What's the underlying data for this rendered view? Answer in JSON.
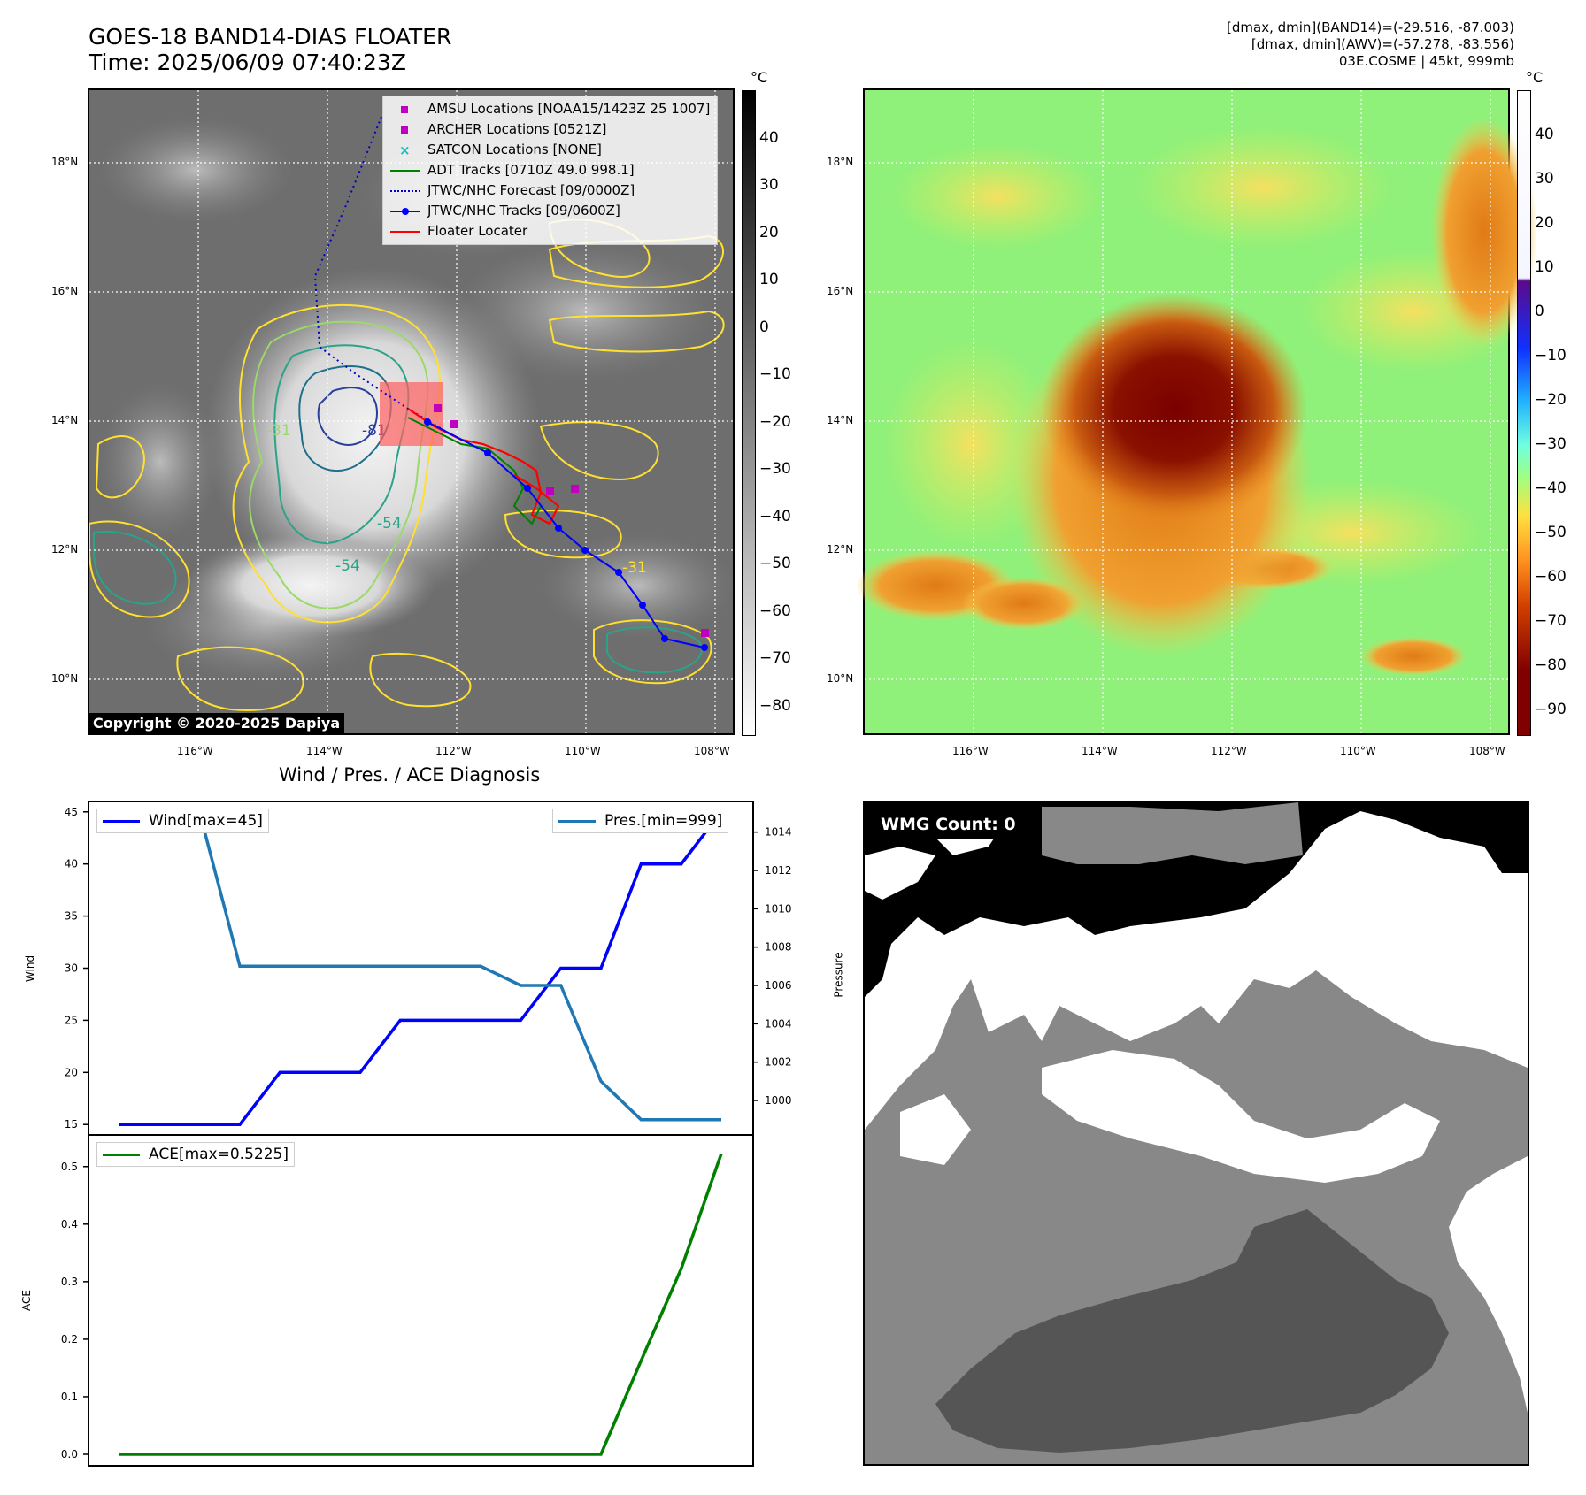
{
  "header": {
    "title_line1": "GOES-18 BAND14-DIAS FLOATER",
    "title_line2": "Time: 2025/06/09 07:40:23Z",
    "right_line1": "[dmax, dmin](BAND14)=(-29.516, -87.003)",
    "right_line2": "[dmax, dmin](AWV)=(-57.278, -83.556)",
    "right_line3": "03E.COSME | 45kt, 999mb"
  },
  "map_axes": {
    "lat_labels": [
      "18°N",
      "16°N",
      "14°N",
      "12°N",
      "10°N"
    ],
    "lon_labels": [
      "116°W",
      "114°W",
      "112°W",
      "110°W",
      "108°W"
    ]
  },
  "left_colorbar": {
    "unit": "°C",
    "ticks": [
      "40",
      "30",
      "20",
      "10",
      "0",
      "−10",
      "−20",
      "−30",
      "−40",
      "−50",
      "−60",
      "−70",
      "−80"
    ]
  },
  "right_colorbar": {
    "unit": "°C",
    "ticks": [
      "40",
      "30",
      "20",
      "10",
      "0",
      "−10",
      "−20",
      "−30",
      "−40",
      "−50",
      "−60",
      "−70",
      "−80",
      "−90"
    ]
  },
  "legend": {
    "amsu": "AMSU Locations [NOAA15/1423Z 25 1007]",
    "archer": "ARCHER Locations [0521Z]",
    "satcon": "SATCON Locations [NONE]",
    "adt": "ADT Tracks [0710Z 49.0 998.1]",
    "forecast": "JTWC/NHC Forecast [09/0000Z]",
    "tracks": "JTWC/NHC Tracks [09/0600Z]",
    "floater": "Floater Locater"
  },
  "contour_labels": [
    "-31",
    "-54",
    "-54",
    "-81",
    "-31"
  ],
  "copyright": "Copyright © 2020-2025 Dapiya",
  "wmg": {
    "label": "WMG Count: 0"
  },
  "chart_data": [
    {
      "type": "line",
      "title": "Wind / Pres. / ACE Diagnosis",
      "ylabel": "Wind",
      "y2label": "Pressure",
      "ylim": [
        14,
        46
      ],
      "y2lim": [
        998.2,
        1015.6
      ],
      "x": [
        0,
        1,
        2,
        3,
        4,
        5,
        6,
        7,
        8,
        9,
        10,
        11,
        12,
        13,
        14,
        15
      ],
      "yticks": [
        "45",
        "40",
        "35",
        "30",
        "25",
        "20",
        "15"
      ],
      "y2ticks": [
        "1014",
        "1012",
        "1010",
        "1008",
        "1006",
        "1004",
        "1002",
        "1000"
      ],
      "series": [
        {
          "name": "Wind[max=45]",
          "axis": "left",
          "color": "#0000ff",
          "values": [
            15,
            15,
            15,
            15,
            20,
            20,
            20,
            25,
            25,
            25,
            25,
            30,
            30,
            40,
            40,
            45
          ]
        },
        {
          "name": "Pres.[min=999]",
          "axis": "right",
          "color": "#1f77b4",
          "values": [
            1015,
            1015,
            1015,
            1007,
            1007,
            1007,
            1007,
            1007,
            1007,
            1007,
            1006,
            1006,
            1001,
            999,
            999,
            999
          ]
        }
      ]
    },
    {
      "type": "line",
      "ylabel": "ACE",
      "ylim": [
        -0.02,
        0.555
      ],
      "x": [
        0,
        1,
        2,
        3,
        4,
        5,
        6,
        7,
        8,
        9,
        10,
        11,
        12,
        13,
        14,
        15
      ],
      "yticks": [
        "0.5",
        "0.4",
        "0.3",
        "0.2",
        "0.1",
        "0.0"
      ],
      "series": [
        {
          "name": "ACE[max=0.5225]",
          "axis": "left",
          "color": "#008000",
          "values": [
            0,
            0,
            0,
            0,
            0,
            0,
            0,
            0,
            0,
            0,
            0,
            0,
            0,
            0.1625,
            0.3225,
            0.5225
          ]
        }
      ]
    }
  ]
}
